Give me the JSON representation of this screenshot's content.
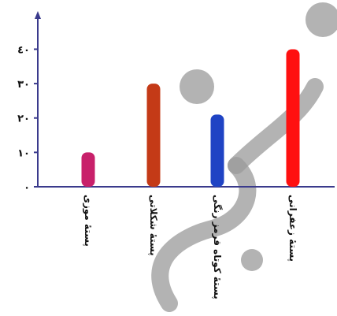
{
  "chart_data": {
    "type": "bar",
    "categories": [
      "پستۀ موزی",
      "پستۀ شکلاتی",
      "پستۀ کوتاه قرمز رنگی",
      "پستۀ زعفرانی"
    ],
    "values": [
      10,
      30,
      21,
      40
    ],
    "bar_colors": [
      "#c8206a",
      "#c43a17",
      "#1f43c4",
      "#ff1010"
    ],
    "y_ticks": [
      0,
      10,
      20,
      30,
      40
    ],
    "y_tick_labels": [
      "٠",
      "١٠",
      "٢٠",
      "٣٠",
      "٤٠"
    ],
    "ylim": [
      0,
      44
    ],
    "title": "",
    "xlabel": "",
    "ylabel": "",
    "axis_color": "#3a3a8c",
    "grid": false
  },
  "watermark": {
    "color": "#9a9a9a"
  }
}
